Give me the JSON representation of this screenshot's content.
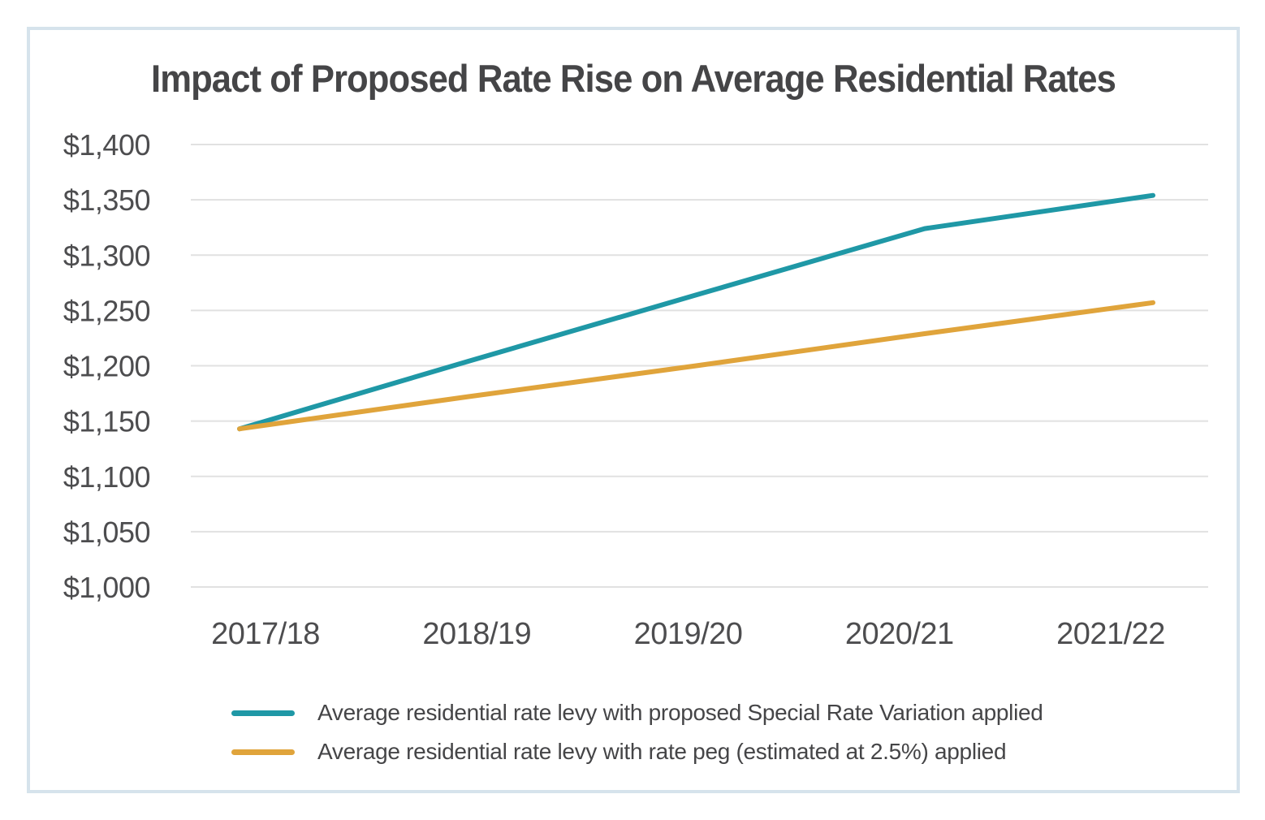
{
  "title": "Impact of Proposed Rate Rise on Average Residential Rates",
  "chart_data": {
    "type": "line",
    "categories": [
      "2017/18",
      "2018/19",
      "2019/20",
      "2020/21",
      "2021/22"
    ],
    "series": [
      {
        "name": "Average residential rate levy with proposed Special Rate Variation applied",
        "color": "#1F98A6",
        "values": [
          1143,
          1204,
          1264,
          1324,
          1354
        ]
      },
      {
        "name": "Average residential rate levy with rate peg (estimated at 2.5%) applied",
        "color": "#E0A43B",
        "values": [
          1143,
          1172,
          1200,
          1229,
          1257
        ]
      }
    ],
    "y_axis": {
      "min": 1000,
      "max": 1400,
      "step": 50,
      "tick_labels": [
        "$1,000",
        "$1,050",
        "$1,100",
        "$1,150",
        "$1,200",
        "$1,250",
        "$1,300",
        "$1,350",
        "$1,400"
      ]
    },
    "grid": "horizontal",
    "legend_position": "bottom-left"
  },
  "colors": {
    "srv_line": "#1F98A6",
    "rate_peg_line": "#E0A43B",
    "grid": "#E1E1E1",
    "frame_border": "#D6E3EC",
    "title_text": "#454547",
    "axis_text": "#4D4D4F",
    "legend_text": "#454547",
    "background": "#FFFFFF"
  }
}
